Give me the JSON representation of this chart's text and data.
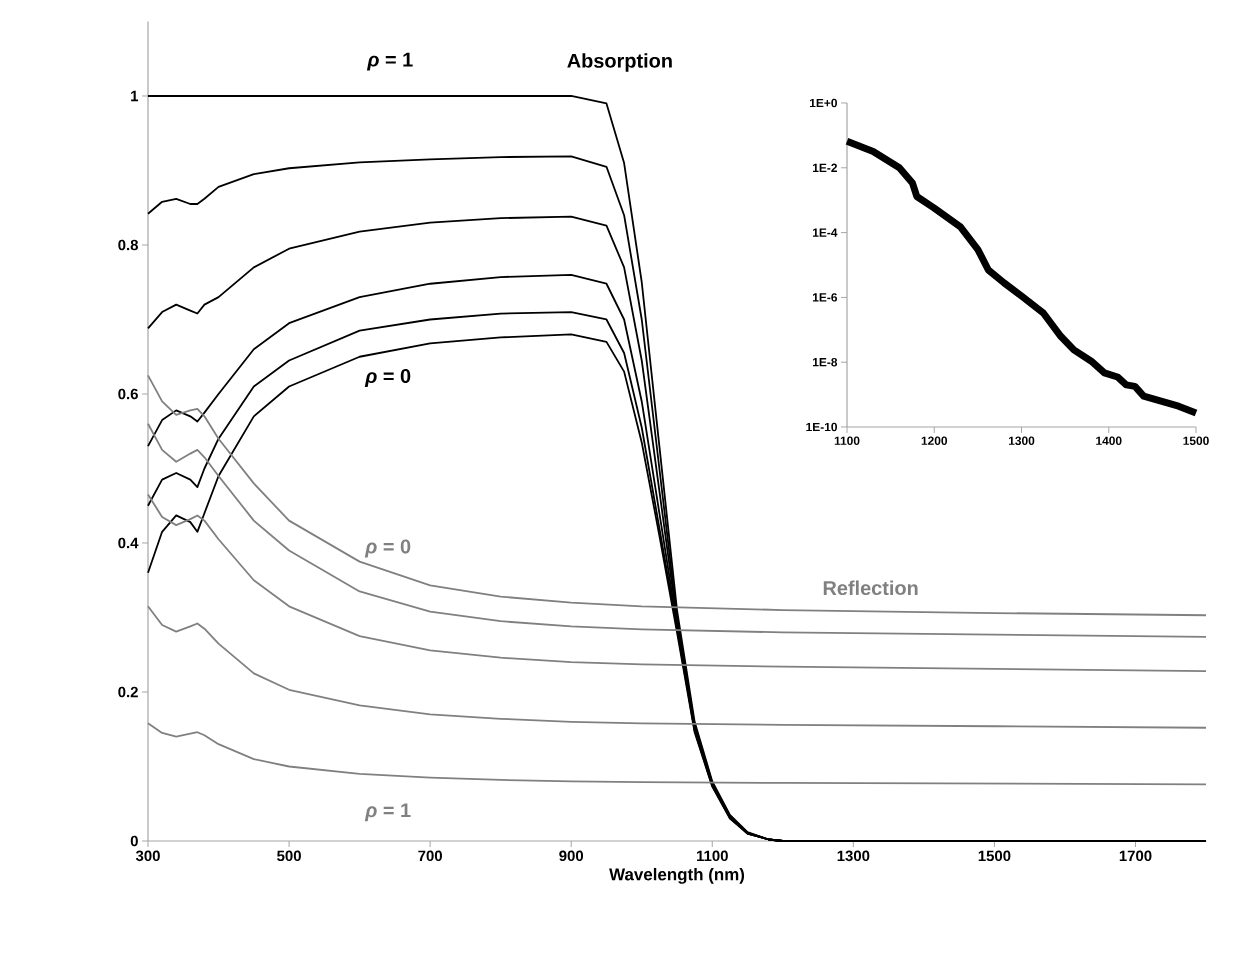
{
  "chart_data": [
    {
      "type": "line",
      "xlabel": "Wavelength (nm)",
      "xlim": [
        300,
        1800
      ],
      "ylim": [
        0,
        1.1
      ],
      "xticks": [
        300,
        500,
        700,
        900,
        1100,
        1300,
        1500,
        1700
      ],
      "yticks": [
        0,
        0.2,
        0.4,
        0.6,
        0.8,
        1
      ],
      "series": [
        {
          "color": "#000000",
          "x": [
            300,
            320,
            340,
            360,
            370,
            380,
            400,
            450,
            500,
            600,
            700,
            800,
            900,
            950,
            975,
            1000,
            1025,
            1050,
            1075,
            1100,
            1125,
            1150,
            1180,
            1200,
            1800
          ],
          "values": [
            1,
            1,
            1,
            1,
            1,
            1,
            1,
            1,
            1,
            1,
            1,
            1,
            1,
            0.99,
            0.91,
            0.75,
            0.53,
            0.31,
            0.16,
            0.08,
            0.035,
            0.012,
            0.002,
            0,
            0
          ]
        },
        {
          "color": "#000000",
          "x": [
            300,
            320,
            340,
            360,
            370,
            380,
            400,
            450,
            500,
            600,
            700,
            800,
            900,
            950,
            975,
            1000,
            1025,
            1050,
            1075,
            1100,
            1125,
            1150,
            1180,
            1200,
            1800
          ],
          "values": [
            0.842,
            0.858,
            0.862,
            0.855,
            0.855,
            0.862,
            0.878,
            0.895,
            0.903,
            0.911,
            0.915,
            0.918,
            0.919,
            0.905,
            0.84,
            0.7,
            0.5,
            0.3,
            0.155,
            0.078,
            0.034,
            0.011,
            0.002,
            0,
            0
          ]
        },
        {
          "color": "#000000",
          "x": [
            300,
            320,
            340,
            360,
            370,
            380,
            400,
            450,
            500,
            600,
            700,
            800,
            900,
            950,
            975,
            1000,
            1025,
            1050,
            1075,
            1100,
            1125,
            1150,
            1180,
            1200,
            1800
          ],
          "values": [
            0.688,
            0.71,
            0.72,
            0.712,
            0.708,
            0.72,
            0.73,
            0.77,
            0.795,
            0.818,
            0.83,
            0.836,
            0.838,
            0.826,
            0.77,
            0.645,
            0.47,
            0.295,
            0.152,
            0.076,
            0.033,
            0.011,
            0.002,
            0,
            0
          ]
        },
        {
          "color": "#000000",
          "x": [
            300,
            320,
            340,
            360,
            370,
            380,
            400,
            450,
            500,
            600,
            700,
            800,
            900,
            950,
            975,
            1000,
            1025,
            1050,
            1075,
            1100,
            1125,
            1150,
            1180,
            1200,
            1800
          ],
          "values": [
            0.53,
            0.565,
            0.578,
            0.57,
            0.563,
            0.575,
            0.6,
            0.66,
            0.695,
            0.73,
            0.748,
            0.757,
            0.76,
            0.748,
            0.7,
            0.59,
            0.44,
            0.29,
            0.15,
            0.075,
            0.032,
            0.01,
            0.002,
            0,
            0
          ]
        },
        {
          "color": "#000000",
          "x": [
            300,
            320,
            340,
            360,
            370,
            380,
            400,
            450,
            500,
            600,
            700,
            800,
            900,
            950,
            975,
            1000,
            1025,
            1050,
            1075,
            1100,
            1125,
            1150,
            1180,
            1200,
            1800
          ],
          "values": [
            0.45,
            0.485,
            0.494,
            0.485,
            0.475,
            0.5,
            0.54,
            0.61,
            0.645,
            0.685,
            0.7,
            0.708,
            0.71,
            0.7,
            0.655,
            0.555,
            0.42,
            0.285,
            0.148,
            0.074,
            0.031,
            0.01,
            0.002,
            0,
            0
          ]
        },
        {
          "color": "#000000",
          "x": [
            300,
            320,
            340,
            360,
            370,
            380,
            400,
            450,
            500,
            600,
            700,
            800,
            900,
            950,
            975,
            1000,
            1025,
            1050,
            1075,
            1100,
            1125,
            1150,
            1180,
            1200,
            1800
          ],
          "values": [
            0.36,
            0.415,
            0.437,
            0.428,
            0.415,
            0.44,
            0.49,
            0.57,
            0.61,
            0.65,
            0.668,
            0.676,
            0.68,
            0.67,
            0.63,
            0.535,
            0.41,
            0.28,
            0.146,
            0.073,
            0.03,
            0.01,
            0.002,
            0,
            0
          ]
        },
        {
          "color": "#808080",
          "x": [
            300,
            320,
            340,
            360,
            370,
            380,
            400,
            450,
            500,
            600,
            700,
            800,
            900,
            1000,
            1200,
            1500,
            1800
          ],
          "values": [
            0.625,
            0.59,
            0.572,
            0.578,
            0.58,
            0.57,
            0.54,
            0.48,
            0.43,
            0.375,
            0.343,
            0.328,
            0.32,
            0.315,
            0.31,
            0.306,
            0.303
          ]
        },
        {
          "color": "#808080",
          "x": [
            300,
            320,
            340,
            360,
            370,
            380,
            400,
            450,
            500,
            600,
            700,
            800,
            900,
            1000,
            1200,
            1500,
            1800
          ],
          "values": [
            0.56,
            0.525,
            0.509,
            0.52,
            0.525,
            0.515,
            0.49,
            0.43,
            0.39,
            0.335,
            0.308,
            0.295,
            0.288,
            0.284,
            0.28,
            0.277,
            0.274
          ]
        },
        {
          "color": "#808080",
          "x": [
            300,
            320,
            340,
            360,
            370,
            380,
            400,
            450,
            500,
            600,
            700,
            800,
            900,
            1000,
            1200,
            1500,
            1800
          ],
          "values": [
            0.465,
            0.435,
            0.424,
            0.432,
            0.437,
            0.43,
            0.405,
            0.35,
            0.315,
            0.275,
            0.256,
            0.246,
            0.24,
            0.237,
            0.234,
            0.231,
            0.228
          ]
        },
        {
          "color": "#808080",
          "x": [
            300,
            320,
            340,
            360,
            370,
            380,
            400,
            450,
            500,
            600,
            700,
            800,
            900,
            1000,
            1200,
            1500,
            1800
          ],
          "values": [
            0.315,
            0.29,
            0.281,
            0.288,
            0.292,
            0.285,
            0.265,
            0.225,
            0.203,
            0.182,
            0.17,
            0.164,
            0.16,
            0.158,
            0.156,
            0.154,
            0.152
          ]
        },
        {
          "color": "#808080",
          "x": [
            300,
            320,
            340,
            360,
            370,
            380,
            400,
            450,
            500,
            600,
            700,
            800,
            900,
            1000,
            1200,
            1500,
            1800
          ],
          "values": [
            0.158,
            0.145,
            0.14,
            0.144,
            0.146,
            0.142,
            0.13,
            0.11,
            0.1,
            0.09,
            0.085,
            0.082,
            0.08,
            0.079,
            0.078,
            0.077,
            0.076
          ]
        }
      ],
      "annotations": [
        "*ρ* = 1",
        "Absorption",
        "*ρ* = 0",
        "*ρ* = 0",
        "Reflection",
        "*ρ* = 1"
      ]
    },
    {
      "type": "line",
      "log": "y",
      "xlim": [
        1100,
        1500
      ],
      "ylim": [
        1e-10,
        1
      ],
      "xticks": [
        1100,
        1200,
        1300,
        1400,
        1500
      ],
      "yticks": [
        {
          "value": 1,
          "label": "1E+0"
        },
        {
          "value": 0.01,
          "label": "1E-2"
        },
        {
          "value": 0.0001,
          "label": "1E-4"
        },
        {
          "value": 1e-06,
          "label": "1E-6"
        },
        {
          "value": 1e-08,
          "label": "1E-8"
        },
        {
          "value": 1e-10,
          "label": "1E-10"
        }
      ],
      "series": [
        {
          "color": "#000000",
          "x": [
            1100,
            1130,
            1160,
            1175,
            1180,
            1200,
            1230,
            1250,
            1262,
            1280,
            1300,
            1325,
            1345,
            1360,
            1380,
            1395,
            1410,
            1420,
            1430,
            1440,
            1460,
            1480,
            1500
          ],
          "values": [
            0.066,
            0.032,
            0.01,
            0.0034,
            0.0013,
            0.00057,
            0.00015,
            3e-05,
            7e-06,
            2.8e-06,
            1.1e-06,
            3.3e-07,
            6.3e-08,
            2.4e-08,
            1.07e-08,
            4.7e-09,
            3.5e-09,
            2e-09,
            1.8e-09,
            9e-10,
            6.3e-10,
            4.4e-10,
            2.7e-10
          ]
        }
      ]
    }
  ]
}
